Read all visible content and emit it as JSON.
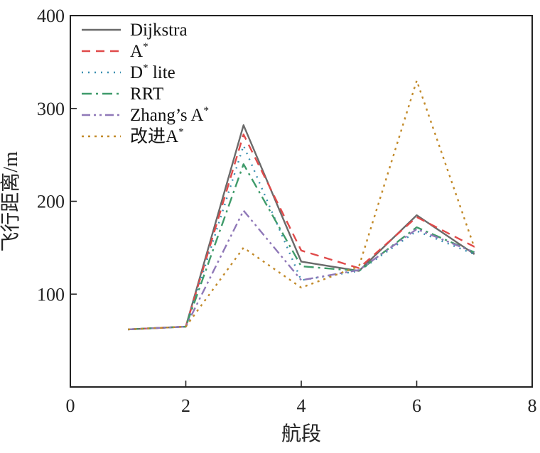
{
  "chart_data": {
    "type": "line",
    "xlabel": "航段",
    "ylabel": "飞行距离/m",
    "xlim": [
      0,
      8
    ],
    "ylim": [
      0,
      400
    ],
    "xticks": [
      0,
      2,
      4,
      6,
      8
    ],
    "yticks": [
      100,
      200,
      300,
      400
    ],
    "x": [
      1,
      2,
      3,
      4,
      5,
      6,
      7
    ],
    "legend_position": "top-left",
    "grid": false,
    "series": [
      {
        "name": "Dijkstra",
        "base": "Dijkstra",
        "sup": "",
        "color": "#6a6a6a",
        "dash": "",
        "values": [
          62,
          65,
          282,
          135,
          125,
          185,
          143
        ]
      },
      {
        "name": "A*",
        "base": "A",
        "sup": "*",
        "color": "#e04a4a",
        "dash": "12,8",
        "values": [
          62,
          65,
          272,
          147,
          128,
          183,
          151
        ]
      },
      {
        "name": "D* lite",
        "base": "D",
        "sup": "* lite",
        "color": "#3a8fb0",
        "dash": "2,7",
        "values": [
          62,
          65,
          260,
          115,
          125,
          168,
          143
        ]
      },
      {
        "name": "RRT",
        "base": "RRT",
        "sup": "",
        "color": "#3f9b6a",
        "dash": "14,6,3,6",
        "values": [
          62,
          65,
          240,
          130,
          125,
          172,
          145
        ]
      },
      {
        "name": "Zhang’s A*",
        "base": "Zhang’s A",
        "sup": "*",
        "color": "#8f78b8",
        "dash": "12,5,3,5,3,5",
        "values": [
          62,
          65,
          190,
          115,
          126,
          170,
          145
        ]
      },
      {
        "name": "改进A*",
        "base": "改进A",
        "sup": "*",
        "color": "#c28a2a",
        "dash": "3,6",
        "values": [
          62,
          65,
          150,
          107,
          130,
          330,
          150
        ]
      }
    ]
  }
}
